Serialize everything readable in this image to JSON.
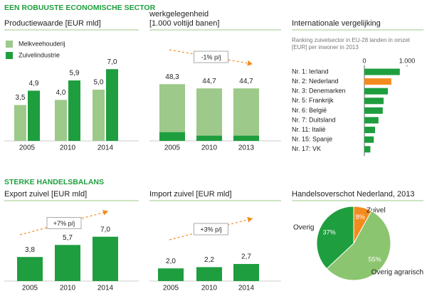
{
  "headings": [
    "EEN ROBUUSTE ECONOMISCHE SECTOR",
    "STERKE HANDELSBALANS"
  ],
  "chart_data": [
    {
      "type": "bar",
      "title": "Productiewaarde [EUR mld]",
      "categories": [
        "2005",
        "2010",
        "2014"
      ],
      "series": [
        {
          "name": "Melkveehouderij",
          "color": "#9dc98a",
          "values": [
            3.5,
            4.0,
            5.0
          ],
          "value_labels": [
            "3,5",
            "4,0",
            "5,0"
          ]
        },
        {
          "name": "Zuivelindustrie",
          "color": "#1e9e3e",
          "values": [
            4.9,
            5.9,
            7.0
          ],
          "value_labels": [
            "4,9",
            "5,9",
            "7,0"
          ]
        }
      ]
    },
    {
      "type": "bar",
      "stacked": true,
      "title": "werkgelegenheid",
      "subtitle": "[1.000 voltijd banen]",
      "categories": [
        "2005",
        "2010",
        "2013"
      ],
      "series": [
        {
          "color": "#1e9e3e",
          "values": [
            7.5,
            4.5,
            4.5
          ]
        },
        {
          "color": "#9dc98a",
          "values": [
            40.8,
            40.2,
            40.2
          ]
        }
      ],
      "totals": [
        48.3,
        44.7,
        44.7
      ],
      "total_labels": [
        "48,3",
        "44,7",
        "44,7"
      ],
      "annotation": "-1% p/j"
    },
    {
      "type": "bar",
      "orientation": "horizontal",
      "title": "Internationale vergelijking",
      "subtitle": "Ranking zuivelsector in EU-28 landen in omzet [EUR] per inwoner in 2013",
      "categories": [
        "Nr. 1: Ierland",
        "Nr. 2: Nederland",
        "Nr. 3: Denemarken",
        "Nr. 5: Frankrijk",
        "Nr. 6: België",
        "Nr. 7: Duitsland",
        "Nr. 11: Italië",
        "Nr. 15: Spanje",
        "Nr. 17: VK"
      ],
      "values": [
        830,
        630,
        550,
        450,
        430,
        330,
        250,
        220,
        140
      ],
      "colors": [
        "#1e9e3e",
        "#f28c1e",
        "#1e9e3e",
        "#1e9e3e",
        "#1e9e3e",
        "#1e9e3e",
        "#1e9e3e",
        "#1e9e3e",
        "#1e9e3e"
      ],
      "xlim": [
        0,
        1000
      ],
      "xticks": [
        0,
        {
          "value": 1000,
          "label": "1.000"
        }
      ]
    },
    {
      "type": "bar",
      "title": "Export zuivel [EUR mld]",
      "categories": [
        "2005",
        "2010",
        "2014"
      ],
      "values": [
        3.8,
        5.7,
        7.0
      ],
      "value_labels": [
        "3,8",
        "5,7",
        "7,0"
      ],
      "color": "#1e9e3e",
      "annotation": "+7% p/j"
    },
    {
      "type": "bar",
      "title": "Import zuivel [EUR mld]",
      "categories": [
        "2005",
        "2010",
        "2014"
      ],
      "values": [
        2.0,
        2.2,
        2.7
      ],
      "value_labels": [
        "2,0",
        "2,2",
        "2,7"
      ],
      "color": "#1e9e3e",
      "annotation": "+3% p/j"
    },
    {
      "type": "pie",
      "title": "Handelsoverschot Nederland, 2013",
      "categories": [
        "Zuivel",
        "Overig agrarisch",
        "Overig"
      ],
      "values": [
        8,
        55,
        37
      ],
      "value_labels": [
        "8%",
        "55%",
        "37%"
      ],
      "colors": [
        "#f28c1e",
        "#8cc56f",
        "#1e9e3e"
      ]
    }
  ]
}
